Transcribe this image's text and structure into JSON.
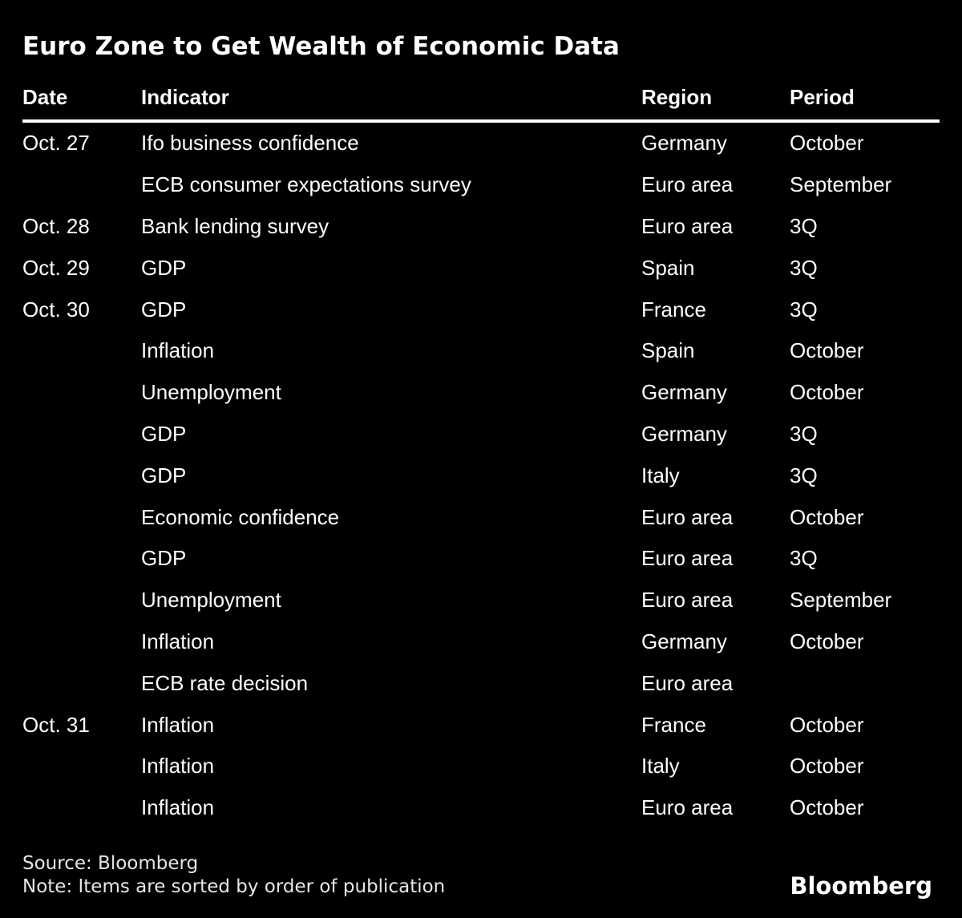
{
  "title": "Euro Zone to Get Wealth of Economic Data",
  "chart_data": {
    "type": "table",
    "title": "Euro Zone to Get Wealth of Economic Data",
    "columns": [
      "Date",
      "Indicator",
      "Region",
      "Period"
    ],
    "rows": [
      {
        "date": "Oct. 27",
        "indicator": "Ifo business confidence",
        "region": "Germany",
        "period": "October"
      },
      {
        "date": "",
        "indicator": "ECB consumer expectations survey",
        "region": "Euro area",
        "period": "September"
      },
      {
        "date": "Oct. 28",
        "indicator": "Bank lending survey",
        "region": "Euro area",
        "period": "3Q"
      },
      {
        "date": "Oct. 29",
        "indicator": "GDP",
        "region": "Spain",
        "period": "3Q"
      },
      {
        "date": "Oct. 30",
        "indicator": "GDP",
        "region": "France",
        "period": "3Q"
      },
      {
        "date": "",
        "indicator": "Inflation",
        "region": "Spain",
        "period": "October"
      },
      {
        "date": "",
        "indicator": "Unemployment",
        "region": "Germany",
        "period": "October"
      },
      {
        "date": "",
        "indicator": "GDP",
        "region": "Germany",
        "period": "3Q"
      },
      {
        "date": "",
        "indicator": "GDP",
        "region": "Italy",
        "period": "3Q"
      },
      {
        "date": "",
        "indicator": "Economic confidence",
        "region": "Euro area",
        "period": "October"
      },
      {
        "date": "",
        "indicator": "GDP",
        "region": "Euro area",
        "period": "3Q"
      },
      {
        "date": "",
        "indicator": "Unemployment",
        "region": "Euro area",
        "period": "September"
      },
      {
        "date": "",
        "indicator": "Inflation",
        "region": "Germany",
        "period": "October"
      },
      {
        "date": "",
        "indicator": "ECB rate decision",
        "region": "Euro area",
        "period": ""
      },
      {
        "date": "Oct. 31",
        "indicator": "Inflation",
        "region": "France",
        "period": "October"
      },
      {
        "date": "",
        "indicator": "Inflation",
        "region": "Italy",
        "period": "October"
      },
      {
        "date": "",
        "indicator": "Inflation",
        "region": "Euro area",
        "period": "October"
      }
    ],
    "layout": {
      "grid": "off",
      "header_rule": "on"
    }
  },
  "footer": {
    "source": "Source: Bloomberg",
    "note": "Note: Items are sorted by order of publication",
    "logo": "Bloomberg"
  },
  "colors": {
    "background": "#000000",
    "text": "#ffffff",
    "footer_text": "#e6e6e6",
    "rule": "#ffffff"
  }
}
